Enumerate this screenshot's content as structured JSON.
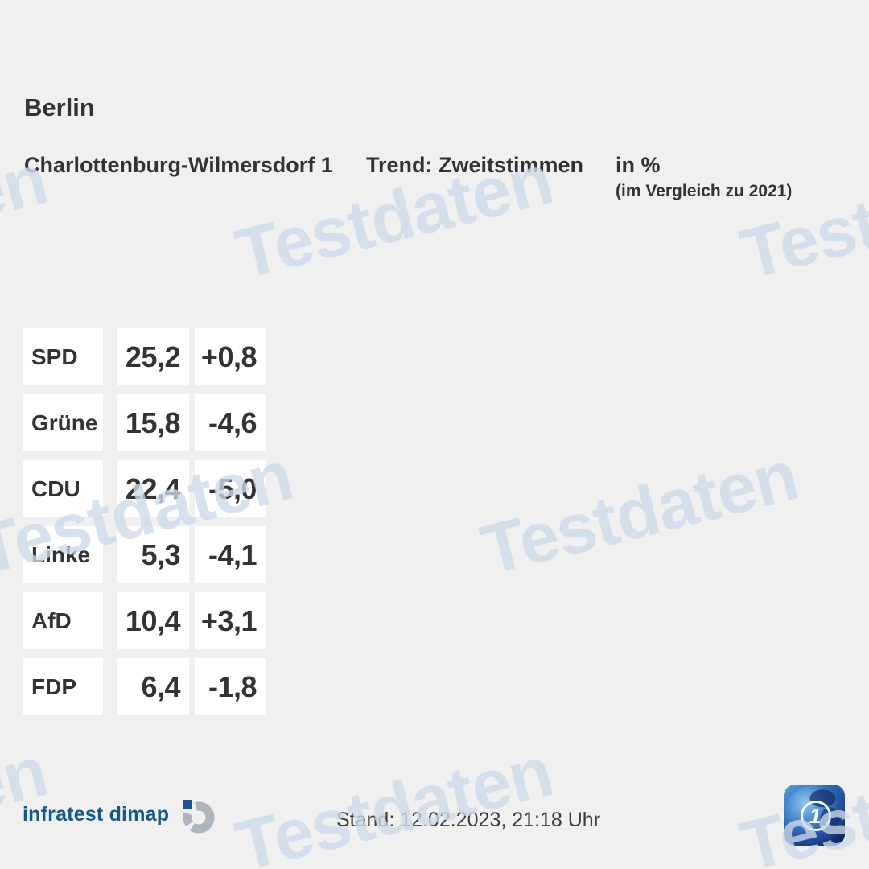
{
  "header": {
    "region": "Berlin",
    "district": "Charlottenburg-Wilmersdorf 1",
    "trend_label": "Trend: Zweitstimmen",
    "unit_label": "in %",
    "comparison_label": "(im Vergleich zu 2021)"
  },
  "results": {
    "rows": [
      {
        "party": "SPD",
        "value": "25,2",
        "change": "+0,8"
      },
      {
        "party": "Grüne",
        "value": "15,8",
        "change": "-4,6"
      },
      {
        "party": "CDU",
        "value": "22,4",
        "change": "-5,0"
      },
      {
        "party": "Linke",
        "value": "5,3",
        "change": "-4,1"
      },
      {
        "party": "AfD",
        "value": "10,4",
        "change": "+3,1"
      },
      {
        "party": "FDP",
        "value": "6,4",
        "change": "-1,8"
      }
    ]
  },
  "footer": {
    "source_label": "infratest dimap",
    "timestamp": "Stand: 12.02.2023, 21:18 Uhr",
    "broadcaster_logo_glyph": "1"
  },
  "watermark": {
    "text": "Testdaten",
    "color": "#cdd9e9"
  },
  "colors": {
    "background": "#f0f0f0",
    "box": "#ffffff",
    "text": "#333333",
    "source_blue": "#15598a",
    "logo_square_blue": "#1d5191",
    "logo_ring_gray": "#aeb5bc"
  },
  "chart_data": {
    "type": "table",
    "title": "Berlin — Charlottenburg-Wilmersdorf 1",
    "subtitle": "Trend: Zweitstimmen in % (im Vergleich zu 2021)",
    "categories": [
      "SPD",
      "Grüne",
      "CDU",
      "Linke",
      "AfD",
      "FDP"
    ],
    "series": [
      {
        "name": "Zweitstimmen in %",
        "values": [
          25.2,
          15.8,
          22.4,
          5.3,
          10.4,
          6.4
        ]
      },
      {
        "name": "Veränderung zu 2021",
        "values": [
          0.8,
          -4.6,
          -5.0,
          -4.1,
          3.1,
          -1.8
        ]
      }
    ],
    "legend_position": "none",
    "grid": false
  }
}
